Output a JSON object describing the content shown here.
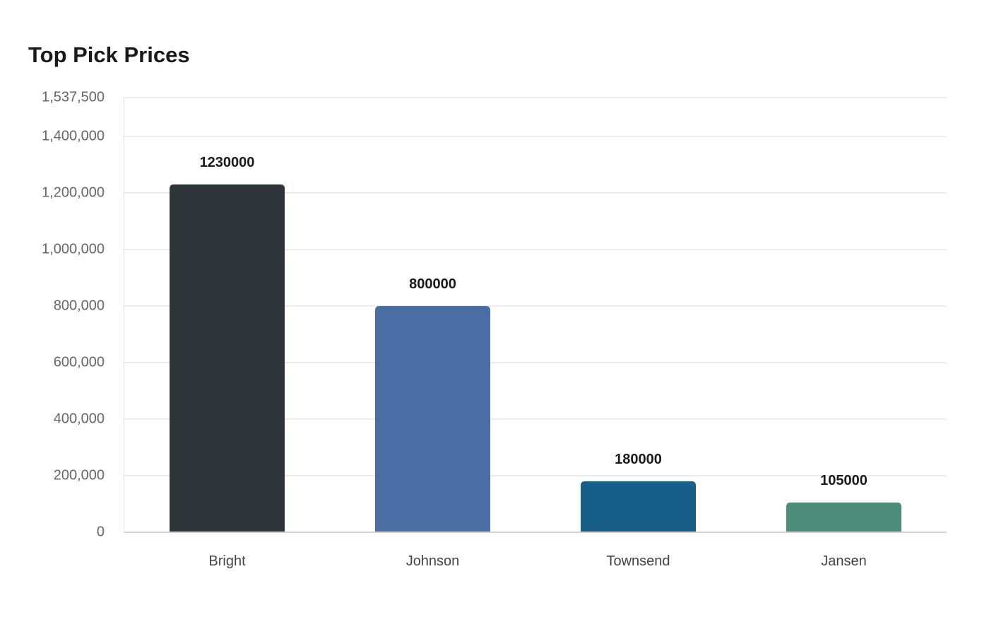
{
  "chart_data": {
    "type": "bar",
    "title": "Top Pick Prices",
    "xlabel": "",
    "ylabel": "",
    "categories": [
      "Bright",
      "Johnson",
      "Townsend",
      "Jansen"
    ],
    "values": [
      1230000,
      800000,
      180000,
      105000
    ],
    "colors": [
      "#2e3538",
      "#4a6ea3",
      "#175f88",
      "#4e8c7a"
    ],
    "ylim": [
      0,
      1537500
    ],
    "yticks": [
      0,
      200000,
      400000,
      600000,
      800000,
      1000000,
      1200000,
      1400000,
      1537500
    ],
    "ytick_labels": [
      "0",
      "200,000",
      "400,000",
      "600,000",
      "800,000",
      "1,000,000",
      "1,200,000",
      "1,400,000",
      "1,537,500"
    ],
    "data_labels": [
      "1230000",
      "800000",
      "180000",
      "105000"
    ],
    "grid": true,
    "legend": null
  }
}
